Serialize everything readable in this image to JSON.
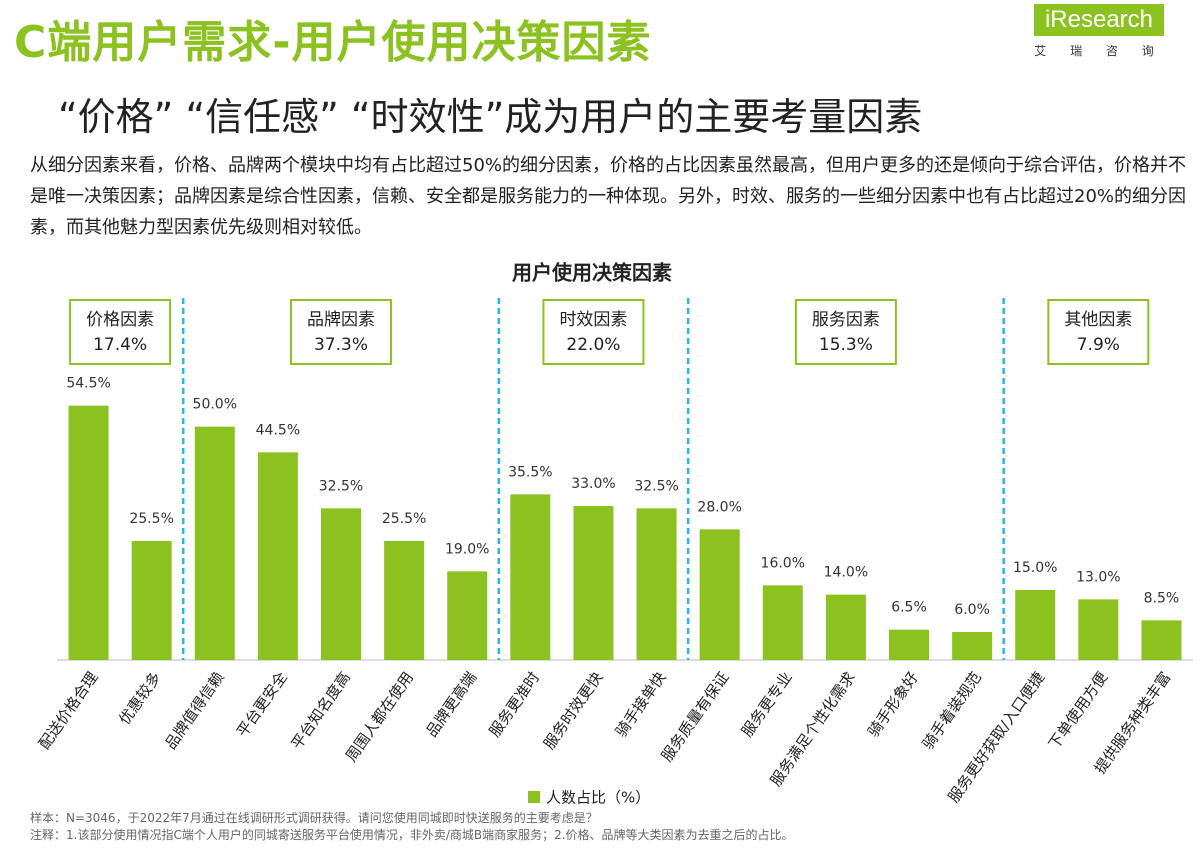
{
  "header": {
    "title": "C端用户需求-用户使用决策因素",
    "logo": "iResearch",
    "logo_cn": "艾 瑞 咨 询",
    "subtitle": "“价格”  “信任感”  “时效性”成为用户的主要考量因素",
    "paragraph": "从细分因素来看，价格、品牌两个模块中均有占比超过50%的细分因素，价格的占比因素虽然最高，但用户更多的还是倾向于综合评估，价格并不是唯一决策因素；品牌因素是综合性因素，信赖、安全都是服务能力的一种体现。另外，时效、服务的一些细分因素中也有占比超过20%的细分因素，而其他魅力型因素优先级则相对较低。"
  },
  "chart_data": {
    "type": "bar",
    "title": "用户使用决策因素",
    "series_name": "人数占比（%）",
    "color": "#8cc21f",
    "ylim": [
      0,
      60
    ],
    "groups": [
      {
        "name": "价格因素",
        "value": 17.4,
        "value_label": "17.4%",
        "categories": [
          "配送价格合理",
          "优惠较多"
        ],
        "values": [
          54.5,
          25.5
        ],
        "value_labels": [
          "54.5%",
          "25.5%"
        ]
      },
      {
        "name": "品牌因素",
        "value": 37.3,
        "value_label": "37.3%",
        "categories": [
          "品牌值得信赖",
          "平台更安全",
          "平台知名度高",
          "周围人都在使用",
          "品牌更高端"
        ],
        "values": [
          50.0,
          44.5,
          32.5,
          25.5,
          19.0
        ],
        "value_labels": [
          "50.0%",
          "44.5%",
          "32.5%",
          "25.5%",
          "19.0%"
        ]
      },
      {
        "name": "时效因素",
        "value": 22.0,
        "value_label": "22.0%",
        "categories": [
          "服务更准时",
          "服务时效更快",
          "骑手接单快"
        ],
        "values": [
          35.5,
          33.0,
          32.5
        ],
        "value_labels": [
          "35.5%",
          "33.0%",
          "32.5%"
        ]
      },
      {
        "name": "服务因素",
        "value": 15.3,
        "value_label": "15.3%",
        "categories": [
          "服务质量有保证",
          "服务更专业",
          "服务满足个性化需求",
          "骑手形象好",
          "骑手着装规范"
        ],
        "values": [
          28.0,
          16.0,
          14.0,
          6.5,
          6.0
        ],
        "value_labels": [
          "28.0%",
          "16.0%",
          "14.0%",
          "6.5%",
          "6.0%"
        ]
      },
      {
        "name": "其他因素",
        "value": 7.9,
        "value_label": "7.9%",
        "categories": [
          "服务更好获取/入口便捷",
          "下单使用方便",
          "提供服务种类丰富"
        ],
        "values": [
          15.0,
          13.0,
          8.5
        ],
        "value_labels": [
          "15.0%",
          "13.0%",
          "8.5%"
        ]
      }
    ]
  },
  "footnotes": [
    "样本：N=3046，于2022年7月通过在线调研形式调研获得。请问您使用同城即时快送服务的主要考虑是？",
    "注释：1.该部分使用情况指C端个人用户的同城寄送服务平台使用情况，非外卖/商城B端商家服务；2.价格、品牌等大类因素为去重之后的占比。"
  ]
}
